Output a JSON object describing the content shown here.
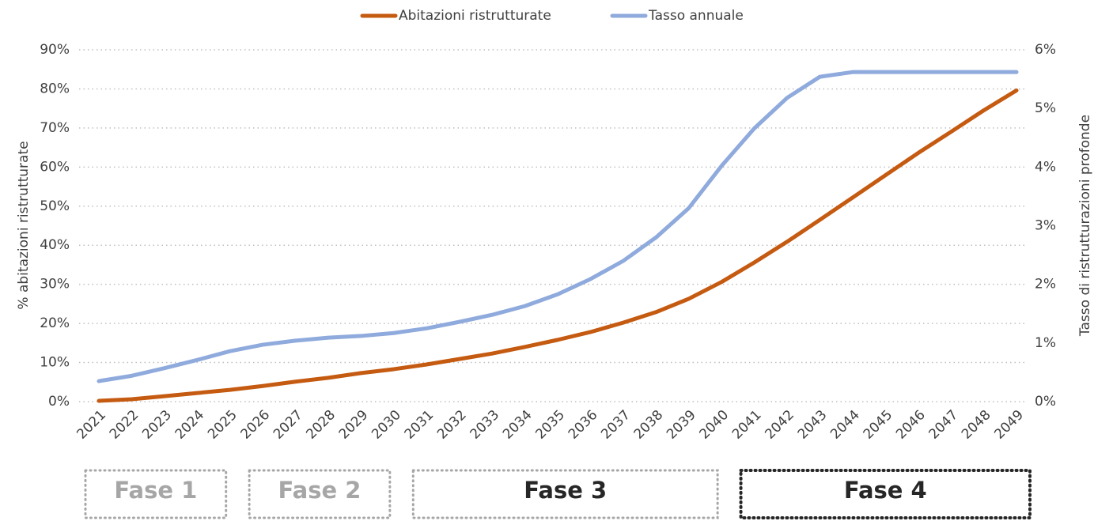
{
  "chart_data": {
    "type": "line",
    "categories": [
      "2021",
      "2022",
      "2023",
      "2024",
      "2025",
      "2026",
      "2027",
      "2028",
      "2029",
      "2030",
      "2031",
      "2032",
      "2033",
      "2034",
      "2035",
      "2036",
      "2037",
      "2038",
      "2039",
      "2040",
      "2041",
      "2042",
      "2043",
      "2044",
      "2045",
      "2046",
      "2047",
      "2048",
      "2049"
    ],
    "series": [
      {
        "name": "Abitazioni ristrutturate",
        "color": "#c55a11",
        "axis": "y",
        "values": [
          0.2,
          0.6,
          1.4,
          2.2,
          3.0,
          4.0,
          5.1,
          6.1,
          7.3,
          8.3,
          9.5,
          10.9,
          12.3,
          14.0,
          15.8,
          17.8,
          20.2,
          22.9,
          26.3,
          30.6,
          35.6,
          40.9,
          46.5,
          52.2,
          57.9,
          63.6,
          69.0,
          74.5,
          79.6
        ]
      },
      {
        "name": "Tasso annuale",
        "color": "#8faadc",
        "axis": "y2",
        "values": [
          0.35,
          0.44,
          0.57,
          0.71,
          0.86,
          0.97,
          1.04,
          1.09,
          1.12,
          1.17,
          1.25,
          1.36,
          1.48,
          1.63,
          1.83,
          2.09,
          2.4,
          2.8,
          3.3,
          4.02,
          4.66,
          5.18,
          5.54,
          5.62,
          5.62,
          5.62,
          5.62,
          5.62,
          5.62
        ]
      }
    ],
    "y_label": "% abitazioni ristrutturate",
    "y2_label": "Tasso di ristrutturazioni profonde",
    "ylim": [
      0,
      90
    ],
    "yticks": [
      {
        "value": 0,
        "label": "0%"
      },
      {
        "value": 10,
        "label": "10%"
      },
      {
        "value": 20,
        "label": "20%"
      },
      {
        "value": 30,
        "label": "30%"
      },
      {
        "value": 40,
        "label": "40%"
      },
      {
        "value": 50,
        "label": "50%"
      },
      {
        "value": 60,
        "label": "60%"
      },
      {
        "value": 70,
        "label": "70%"
      },
      {
        "value": 80,
        "label": "80%"
      },
      {
        "value": 90,
        "label": "90%"
      }
    ],
    "y2lim": [
      0,
      6
    ],
    "y2ticks": [
      {
        "value": 0,
        "label": "0%"
      },
      {
        "value": 1,
        "label": "1%"
      },
      {
        "value": 2,
        "label": "2%"
      },
      {
        "value": 3,
        "label": "3%"
      },
      {
        "value": 4,
        "label": "4%"
      },
      {
        "value": 5,
        "label": "5%"
      },
      {
        "value": 6,
        "label": "6%"
      }
    ],
    "grid": true,
    "legend": "top",
    "phases": [
      {
        "label": "Fase 1",
        "from": "2021",
        "to": "2025",
        "text_color": "#a6a6a6",
        "border_color": "#a6a6a6"
      },
      {
        "label": "Fase 2",
        "from": "2026",
        "to": "2030",
        "text_color": "#a6a6a6",
        "border_color": "#a6a6a6"
      },
      {
        "label": "Fase 3",
        "from": "2031",
        "to": "2040",
        "text_color": "#262626",
        "border_color": "#a6a6a6"
      },
      {
        "label": "Fase 4",
        "from": "2041",
        "to": "2049",
        "text_color": "#262626",
        "border_color": "#262626"
      }
    ]
  }
}
